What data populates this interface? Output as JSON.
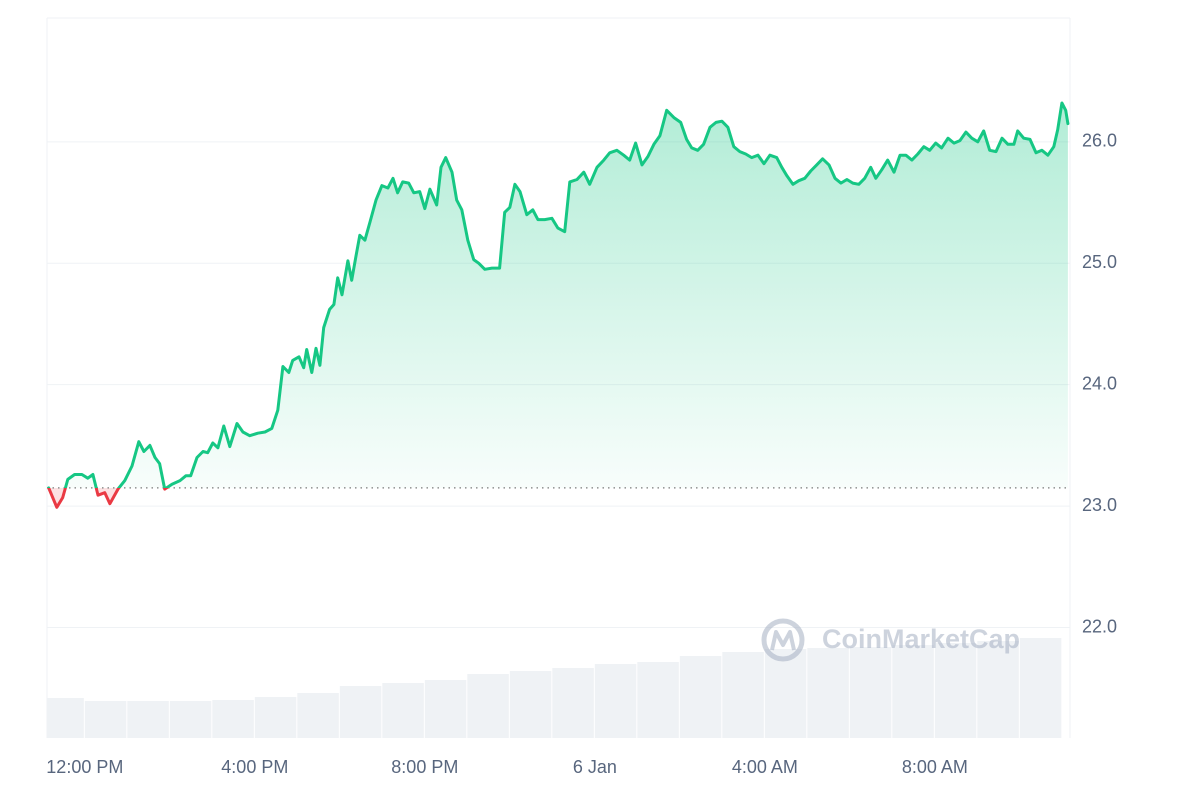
{
  "chart_data": {
    "type": "line",
    "x": [
      -0.85,
      -0.66,
      -0.52,
      -0.4,
      -0.24,
      -0.07,
      0.07,
      0.19,
      0.31,
      0.47,
      0.59,
      0.78,
      0.94,
      1.11,
      1.27,
      1.39,
      1.53,
      1.65,
      1.76,
      1.88,
      2.05,
      2.24,
      2.38,
      2.49,
      2.64,
      2.78,
      2.89,
      3.01,
      3.13,
      3.27,
      3.41,
      3.58,
      3.72,
      3.88,
      4.07,
      4.24,
      4.4,
      4.54,
      4.66,
      4.8,
      4.89,
      5.04,
      5.15,
      5.22,
      5.34,
      5.44,
      5.53,
      5.62,
      5.76,
      5.86,
      5.95,
      6.05,
      6.19,
      6.28,
      6.38,
      6.47,
      6.59,
      6.71,
      6.85,
      6.99,
      7.13,
      7.25,
      7.36,
      7.48,
      7.62,
      7.74,
      7.88,
      8.0,
      8.12,
      8.28,
      8.38,
      8.49,
      8.64,
      8.75,
      8.87,
      9.01,
      9.15,
      9.27,
      9.41,
      9.58,
      9.76,
      9.88,
      10.0,
      10.12,
      10.24,
      10.4,
      10.54,
      10.66,
      10.82,
      10.99,
      11.13,
      11.29,
      11.41,
      11.58,
      11.74,
      11.88,
      12.05,
      12.21,
      12.35,
      12.52,
      12.68,
      12.82,
      12.96,
      13.11,
      13.25,
      13.39,
      13.53,
      13.69,
      13.86,
      14.02,
      14.16,
      14.28,
      14.42,
      14.56,
      14.71,
      14.85,
      14.99,
      15.13,
      15.27,
      15.41,
      15.55,
      15.69,
      15.84,
      15.98,
      16.12,
      16.28,
      16.4,
      16.52,
      16.66,
      16.8,
      16.94,
      17.08,
      17.22,
      17.36,
      17.51,
      17.65,
      17.79,
      17.93,
      18.07,
      18.21,
      18.35,
      18.49,
      18.61,
      18.75,
      18.89,
      19.04,
      19.18,
      19.32,
      19.46,
      19.6,
      19.74,
      19.88,
      20.02,
      20.16,
      20.31,
      20.45,
      20.59,
      20.73,
      20.87,
      21.01,
      21.15,
      21.29,
      21.44,
      21.58,
      21.72,
      21.86,
      21.95,
      22.09,
      22.24,
      22.38,
      22.52,
      22.66,
      22.8,
      22.89,
      22.99,
      23.08,
      23.13
    ],
    "values": [
      23.15,
      22.99,
      23.07,
      23.22,
      23.26,
      23.26,
      23.23,
      23.26,
      23.09,
      23.11,
      23.02,
      23.14,
      23.21,
      23.33,
      23.53,
      23.45,
      23.5,
      23.4,
      23.35,
      23.14,
      23.18,
      23.21,
      23.25,
      23.25,
      23.4,
      23.45,
      23.44,
      23.52,
      23.48,
      23.66,
      23.49,
      23.68,
      23.61,
      23.58,
      23.6,
      23.61,
      23.64,
      23.79,
      24.15,
      24.1,
      24.2,
      24.23,
      24.14,
      24.29,
      24.1,
      24.3,
      24.16,
      24.47,
      24.62,
      24.66,
      24.88,
      24.74,
      25.02,
      24.86,
      25.06,
      25.23,
      25.19,
      25.34,
      25.52,
      25.64,
      25.62,
      25.7,
      25.58,
      25.67,
      25.66,
      25.58,
      25.59,
      25.45,
      25.61,
      25.48,
      25.79,
      25.87,
      25.75,
      25.52,
      25.44,
      25.19,
      25.03,
      25.0,
      24.95,
      24.96,
      24.96,
      25.42,
      25.46,
      25.65,
      25.59,
      25.4,
      25.44,
      25.36,
      25.36,
      25.37,
      25.29,
      25.26,
      25.67,
      25.69,
      25.75,
      25.65,
      25.79,
      25.85,
      25.91,
      25.93,
      25.89,
      25.85,
      25.99,
      25.81,
      25.88,
      25.98,
      26.05,
      26.26,
      26.2,
      26.16,
      26.02,
      25.95,
      25.93,
      25.98,
      26.12,
      26.16,
      26.17,
      26.12,
      25.96,
      25.92,
      25.9,
      25.87,
      25.89,
      25.82,
      25.89,
      25.87,
      25.79,
      25.72,
      25.65,
      25.68,
      25.7,
      25.76,
      25.81,
      25.86,
      25.81,
      25.7,
      25.66,
      25.69,
      25.66,
      25.65,
      25.7,
      25.79,
      25.7,
      25.77,
      25.85,
      25.75,
      25.89,
      25.89,
      25.85,
      25.9,
      25.96,
      25.93,
      25.99,
      25.95,
      26.03,
      25.99,
      26.01,
      26.08,
      26.03,
      26.0,
      26.09,
      25.93,
      25.92,
      26.03,
      25.98,
      25.98,
      26.09,
      26.03,
      26.02,
      25.91,
      25.93,
      25.89,
      25.96,
      26.1,
      26.32,
      26.26,
      26.15
    ],
    "color": "#16c784",
    "below_color": "#ea3943",
    "baseline": 23.15,
    "xlim": [
      -0.89,
      23.18
    ],
    "xticks": [
      {
        "value": 0,
        "label": "12:00 PM"
      },
      {
        "value": 4,
        "label": "4:00 PM"
      },
      {
        "value": 8,
        "label": "8:00 PM"
      },
      {
        "value": 12,
        "label": "6 Jan"
      },
      {
        "value": 16,
        "label": "4:00 AM"
      },
      {
        "value": 20,
        "label": "8:00 AM"
      }
    ],
    "ylim": [
      21.09,
      27.02
    ],
    "yticks": [
      {
        "value": 22,
        "label": "22.0"
      },
      {
        "value": 23,
        "label": "23.0"
      },
      {
        "value": 24,
        "label": "24.0"
      },
      {
        "value": 25,
        "label": "25.0"
      },
      {
        "value": 26,
        "label": "26.0"
      }
    ],
    "grid": true,
    "volume": {
      "x": [
        -0.5,
        0.5,
        1.5,
        2.5,
        3.5,
        4.5,
        5.5,
        6.5,
        7.5,
        8.5,
        9.5,
        10.5,
        11.5,
        12.5,
        13.5,
        14.5,
        15.5,
        16.5,
        17.5,
        18.5,
        19.5,
        20.5,
        21.5,
        22.5
      ],
      "values": [
        40,
        37,
        37,
        37,
        38,
        41,
        45,
        52,
        55,
        58,
        64,
        67,
        70,
        74,
        76,
        82,
        86,
        89,
        90,
        91,
        93,
        95,
        97,
        100
      ],
      "color": "#eff2f5"
    },
    "volume_lim": [
      0,
      140
    ],
    "watermark": "CoinMarketCap"
  }
}
